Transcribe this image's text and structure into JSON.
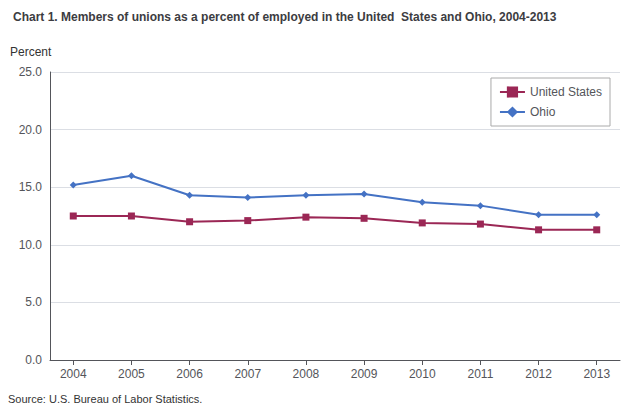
{
  "chart_data": {
    "type": "line",
    "title": "Chart 1. Members of unions as a percent of employed in the United  States and Ohio, 2004-2013",
    "ylabel": "Percent",
    "annotations": [
      "Source: U.S. Bureau of Labor Statistics."
    ],
    "x": [
      2004,
      2005,
      2006,
      2007,
      2008,
      2009,
      2010,
      2011,
      2012,
      2013
    ],
    "xlim": [
      2003.6,
      2013.4
    ],
    "xticks": [
      2004,
      2005,
      2006,
      2007,
      2008,
      2009,
      2010,
      2011,
      2012,
      2013
    ],
    "ylim": [
      0,
      25.0
    ],
    "yticks": [
      {
        "value": 0,
        "label": "0.0"
      },
      {
        "value": 5,
        "label": "5.0"
      },
      {
        "value": 10,
        "label": "10.0"
      },
      {
        "value": 15,
        "label": "15.0"
      },
      {
        "value": 20,
        "label": "20.0"
      },
      {
        "value": 25,
        "label": "25.0"
      }
    ],
    "grid": true,
    "legend": "upper right",
    "series": [
      {
        "name": "United States",
        "color": "#9B2755",
        "marker": "square",
        "values": [
          12.5,
          12.5,
          12.0,
          12.1,
          12.4,
          12.3,
          11.9,
          11.8,
          11.3,
          11.3
        ]
      },
      {
        "name": "Ohio",
        "color": "#4472C4",
        "marker": "diamond",
        "values": [
          15.2,
          16.0,
          14.3,
          14.1,
          14.3,
          14.4,
          13.7,
          13.4,
          12.6,
          12.6
        ]
      }
    ]
  }
}
